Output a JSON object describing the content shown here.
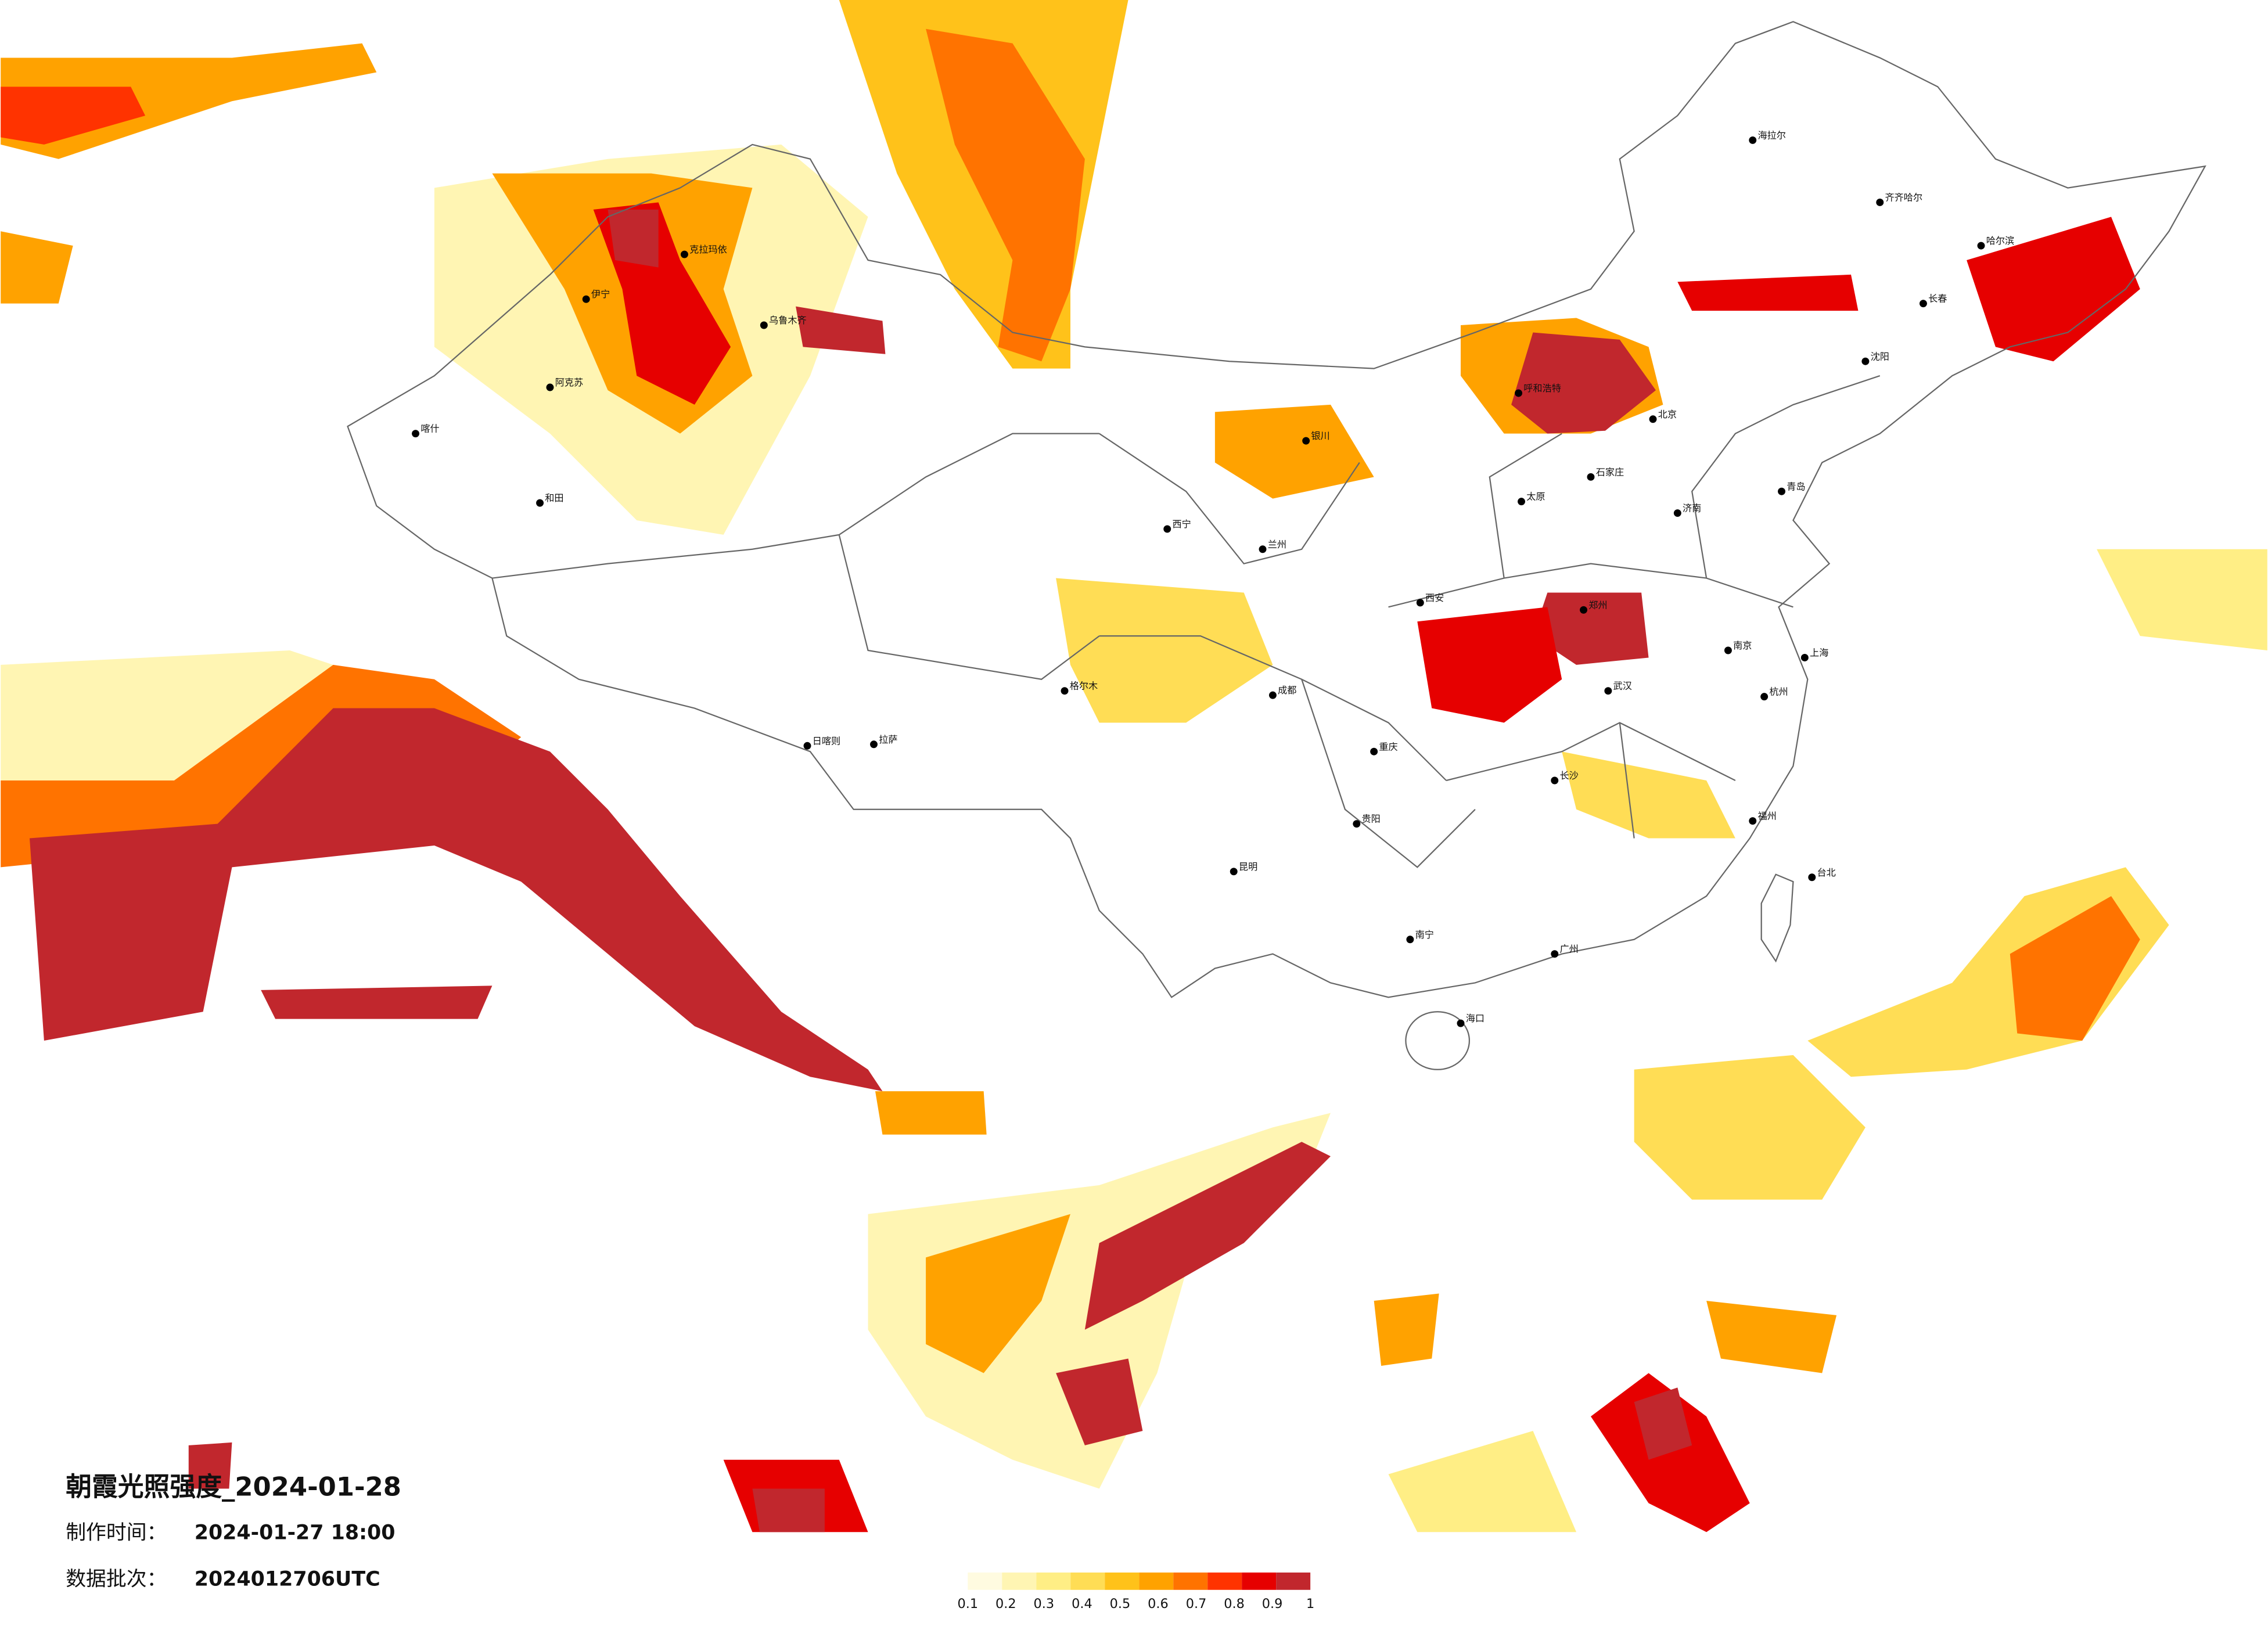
{
  "title": "朝霞光照强度_2024-01-28",
  "made_time": {
    "label": "制作时间：",
    "value": "2024-01-27 18:00"
  },
  "batch": {
    "label": "数据批次：",
    "value": "2024012706UTC"
  },
  "legend": {
    "ticks": [
      0.1,
      0.2,
      0.3,
      0.4,
      0.5,
      0.6,
      0.7,
      0.8,
      0.9,
      1
    ],
    "colors": [
      "#fffbe0",
      "#fff5b3",
      "#ffee85",
      "#ffdd55",
      "#ffc21a",
      "#ffa200",
      "#ff7300",
      "#ff3300",
      "#e60000",
      "#c1272d"
    ]
  },
  "cities": [
    "乌鲁木齐",
    "克拉玛依",
    "伊宁",
    "喀什",
    "和田",
    "阿克苏",
    "格尔木",
    "拉萨",
    "日喀则",
    "西宁",
    "兰州",
    "银川",
    "呼和浩特",
    "北京",
    "石家庄",
    "太原",
    "济南",
    "郑州",
    "西安",
    "成都",
    "重庆",
    "贵阳",
    "昆明",
    "南宁",
    "广州",
    "长沙",
    "武汉",
    "南京",
    "上海",
    "杭州",
    "福州",
    "台北",
    "海口",
    "哈尔滨",
    "长春",
    "沈阳",
    "齐齐哈尔",
    "海拉尔",
    "青岛"
  ]
}
